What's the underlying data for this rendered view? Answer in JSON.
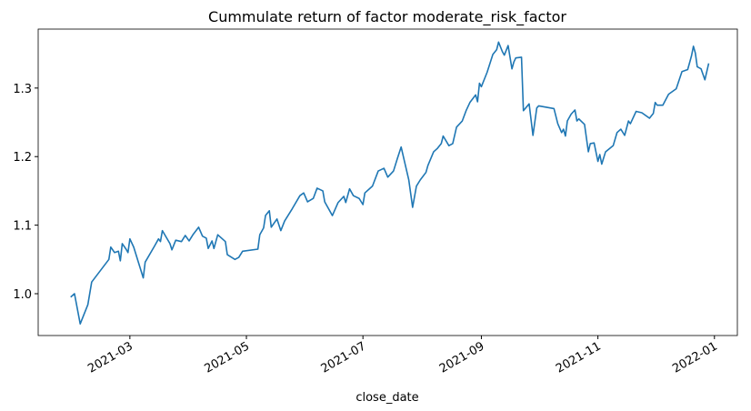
{
  "chart_data": {
    "type": "line",
    "title": "Cummulate return of factor moderate_risk_factor",
    "x_label": "close_date",
    "x": [
      18656,
      18658,
      18661,
      18665,
      18667,
      18676,
      18677,
      18679,
      18681,
      18682,
      18683,
      18685,
      18686,
      18687,
      18689,
      18694,
      18695,
      18700,
      18702,
      18703,
      18704,
      18708,
      18709,
      18711,
      18714,
      18716,
      18718,
      18720,
      18723,
      18725,
      18727,
      18728,
      18730,
      18731,
      18733,
      18737,
      18738,
      18742,
      18744,
      18746,
      18754,
      18755,
      18757,
      18758,
      18760,
      18761,
      18764,
      18766,
      18768,
      18772,
      18776,
      18778,
      18780,
      18783,
      18785,
      18788,
      18789,
      18793,
      18796,
      18799,
      18800,
      18802,
      18804,
      18807,
      18809,
      18810,
      18814,
      18817,
      18820,
      18822,
      18825,
      18827,
      18829,
      18831,
      18833,
      18835,
      18837,
      18839,
      18842,
      18843,
      18846,
      18848,
      18850,
      18851,
      18854,
      18856,
      18858,
      18861,
      18863,
      18865,
      18868,
      18869,
      18870,
      18871,
      18874,
      18877,
      18879,
      18880,
      18882,
      18883,
      18885,
      18887,
      18888,
      18889,
      18892,
      18893,
      18896,
      18898,
      18900,
      18901,
      18909,
      18911,
      18913,
      18914,
      18915,
      18916,
      18918,
      18920,
      18921,
      18922,
      18925,
      18927,
      18928,
      18930,
      18932,
      18933,
      18934,
      18936,
      18940,
      18942,
      18944,
      18946,
      18948,
      18949,
      18952,
      18955,
      18959,
      18961,
      18962,
      18963,
      18966,
      18969,
      18973,
      18976,
      18979,
      18981,
      18982,
      18983,
      18984,
      18986,
      18988,
      18990
    ],
    "series": [
      {
        "name": "moderate_risk_factor",
        "color": "#1f77b4",
        "values": [
          0.995,
          1.0,
          0.956,
          0.984,
          1.017,
          1.05,
          1.068,
          1.06,
          1.062,
          1.048,
          1.073,
          1.065,
          1.06,
          1.08,
          1.068,
          1.023,
          1.046,
          1.07,
          1.08,
          1.076,
          1.092,
          1.073,
          1.064,
          1.078,
          1.076,
          1.085,
          1.077,
          1.086,
          1.097,
          1.084,
          1.081,
          1.066,
          1.077,
          1.066,
          1.086,
          1.076,
          1.057,
          1.05,
          1.053,
          1.062,
          1.065,
          1.086,
          1.096,
          1.114,
          1.121,
          1.097,
          1.109,
          1.092,
          1.106,
          1.124,
          1.143,
          1.147,
          1.134,
          1.139,
          1.154,
          1.15,
          1.134,
          1.114,
          1.133,
          1.142,
          1.133,
          1.153,
          1.143,
          1.139,
          1.13,
          1.147,
          1.157,
          1.179,
          1.183,
          1.17,
          1.179,
          1.197,
          1.214,
          1.19,
          1.166,
          1.126,
          1.157,
          1.166,
          1.177,
          1.187,
          1.207,
          1.212,
          1.219,
          1.23,
          1.216,
          1.219,
          1.243,
          1.252,
          1.267,
          1.279,
          1.29,
          1.28,
          1.307,
          1.302,
          1.323,
          1.349,
          1.356,
          1.367,
          1.353,
          1.348,
          1.362,
          1.328,
          1.338,
          1.344,
          1.345,
          1.267,
          1.277,
          1.231,
          1.271,
          1.274,
          1.27,
          1.248,
          1.235,
          1.24,
          1.23,
          1.252,
          1.262,
          1.268,
          1.252,
          1.255,
          1.247,
          1.207,
          1.219,
          1.22,
          1.193,
          1.203,
          1.189,
          1.207,
          1.216,
          1.235,
          1.24,
          1.231,
          1.252,
          1.248,
          1.266,
          1.264,
          1.256,
          1.263,
          1.279,
          1.275,
          1.275,
          1.291,
          1.299,
          1.324,
          1.327,
          1.347,
          1.361,
          1.351,
          1.331,
          1.328,
          1.312,
          1.336
        ]
      }
    ],
    "xlim": [
      18639,
      19005
    ],
    "ylim": [
      0.939,
      1.386
    ],
    "xticks": [
      {
        "value": 18687,
        "label": "2021-03"
      },
      {
        "value": 18748,
        "label": "2021-05"
      },
      {
        "value": 18809,
        "label": "2021-07"
      },
      {
        "value": 18871,
        "label": "2021-09"
      },
      {
        "value": 18932,
        "label": "2021-11"
      },
      {
        "value": 18993,
        "label": "2022-01"
      }
    ],
    "yticks": [
      {
        "value": 1,
        "label": "1.0"
      },
      1.1,
      1.2,
      1.3
    ],
    "grid": false
  }
}
